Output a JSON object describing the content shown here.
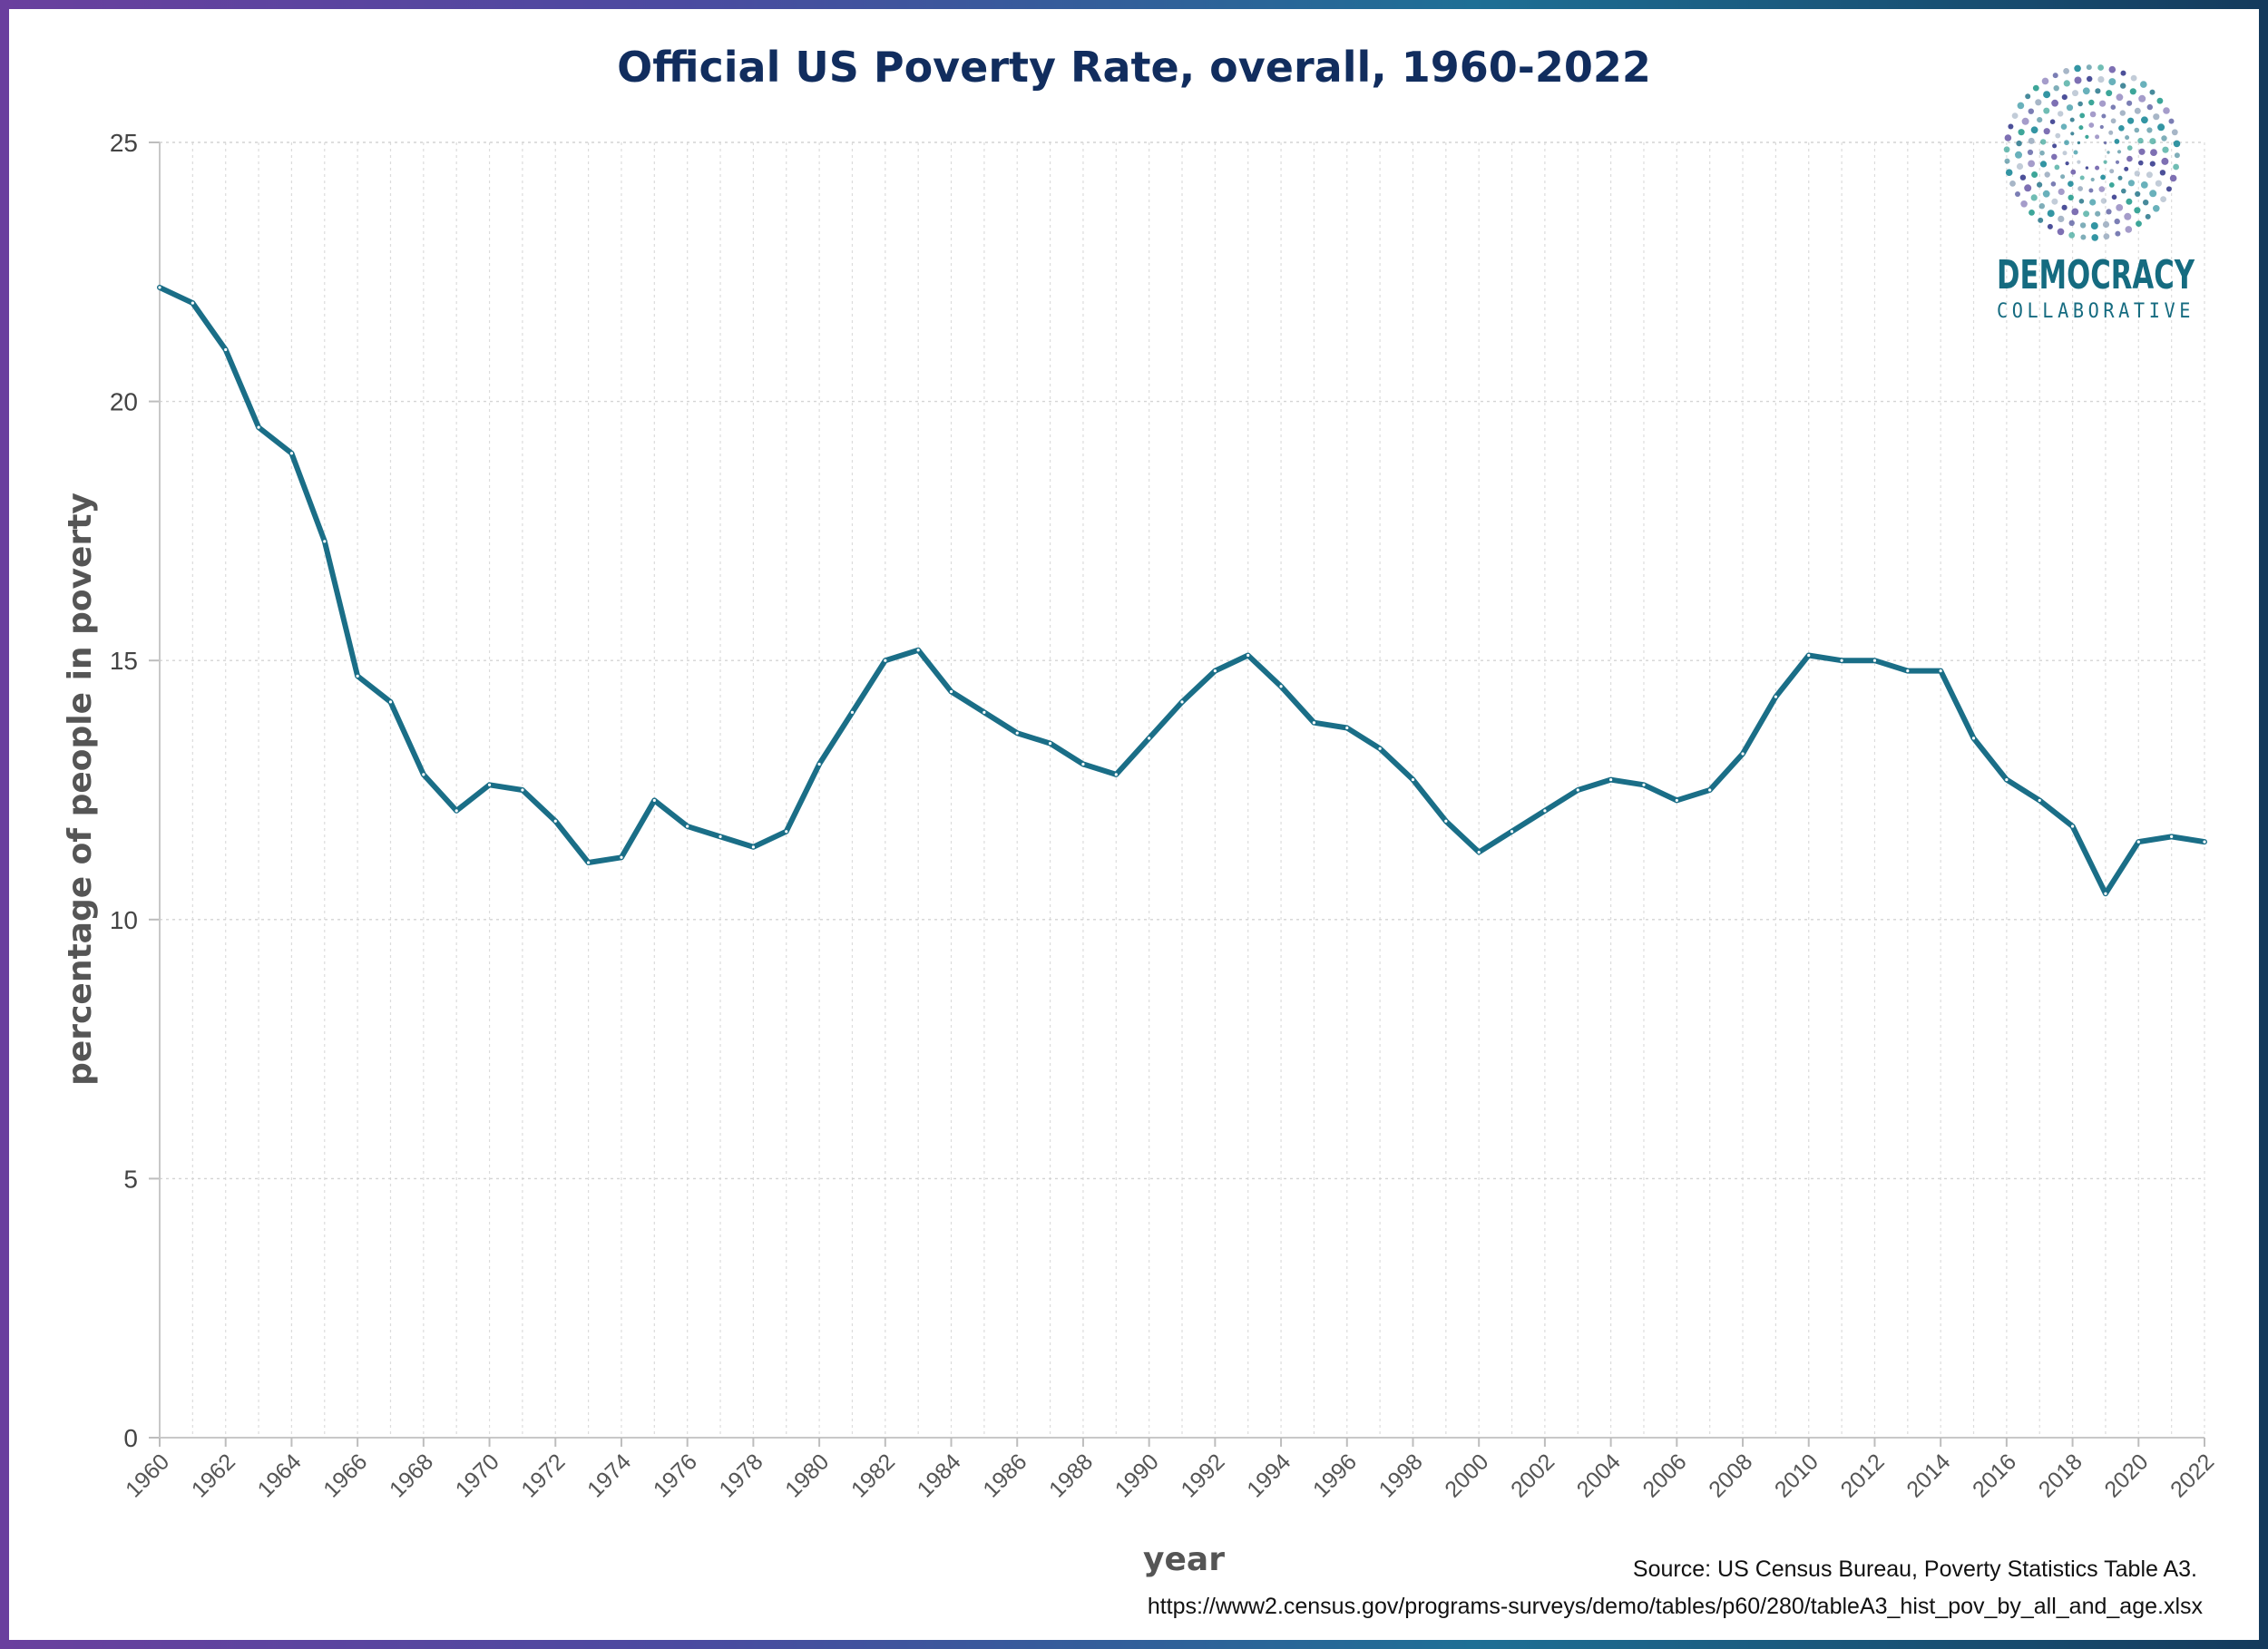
{
  "chart_data": {
    "type": "line",
    "title": "Official US Poverty Rate, overall, 1960-2022",
    "xlabel": "year",
    "ylabel": "percentage of people in poverty",
    "xlim": [
      1960,
      2022
    ],
    "ylim": [
      0,
      25
    ],
    "yticks": [
      "0",
      "5",
      "10",
      "15",
      "20",
      "25"
    ],
    "xticks": [
      "1960",
      "1962",
      "1964",
      "1966",
      "1968",
      "1970",
      "1972",
      "1974",
      "1976",
      "1978",
      "1980",
      "1982",
      "1984",
      "1986",
      "1988",
      "1990",
      "1992",
      "1994",
      "1996",
      "1998",
      "2000",
      "2002",
      "2004",
      "2006",
      "2008",
      "2010",
      "2012",
      "2014",
      "2016",
      "2018",
      "2020",
      "2022"
    ],
    "grid": true,
    "legend": "none",
    "series": [
      {
        "color": "#1a6e87",
        "x": [
          1960,
          1961,
          1962,
          1963,
          1964,
          1965,
          1966,
          1967,
          1968,
          1969,
          1970,
          1971,
          1972,
          1973,
          1974,
          1975,
          1976,
          1977,
          1978,
          1979,
          1980,
          1981,
          1982,
          1983,
          1984,
          1985,
          1986,
          1987,
          1988,
          1989,
          1990,
          1991,
          1992,
          1993,
          1994,
          1995,
          1996,
          1997,
          1998,
          1999,
          2000,
          2001,
          2002,
          2003,
          2004,
          2005,
          2006,
          2007,
          2008,
          2009,
          2010,
          2011,
          2012,
          2013,
          2014,
          2015,
          2016,
          2017,
          2018,
          2019,
          2020,
          2021,
          2022
        ],
        "values": [
          22.2,
          21.9,
          21.0,
          19.5,
          19.0,
          17.3,
          14.7,
          14.2,
          12.8,
          12.1,
          12.6,
          12.5,
          11.9,
          11.1,
          11.2,
          12.3,
          11.8,
          11.6,
          11.4,
          11.7,
          13.0,
          14.0,
          15.0,
          15.2,
          14.4,
          14.0,
          13.6,
          13.4,
          13.0,
          12.8,
          13.5,
          14.2,
          14.8,
          15.1,
          14.5,
          13.8,
          13.7,
          13.3,
          12.7,
          11.9,
          11.3,
          11.7,
          12.1,
          12.5,
          12.7,
          12.6,
          12.3,
          12.5,
          13.2,
          14.3,
          15.1,
          15.0,
          15.0,
          14.8,
          14.8,
          13.5,
          12.7,
          12.3,
          11.8,
          10.5,
          11.5,
          11.6,
          11.5
        ]
      }
    ],
    "source_line1": "Source: US Census Bureau, Poverty Statistics Table A3.",
    "source_line2": "https://www2.census.gov/programs-surveys/demo/tables/p60/280/tableA3_hist_pov_by_all_and_age.xlsx"
  },
  "logo": {
    "name": "DEMOCRACY",
    "subname": "COLLABORATIVE",
    "colors": [
      "#156b80",
      "#2a9d8f",
      "#5b4a9e",
      "#3a3f8f",
      "#8fa3b8",
      "#1f8a9a"
    ]
  }
}
